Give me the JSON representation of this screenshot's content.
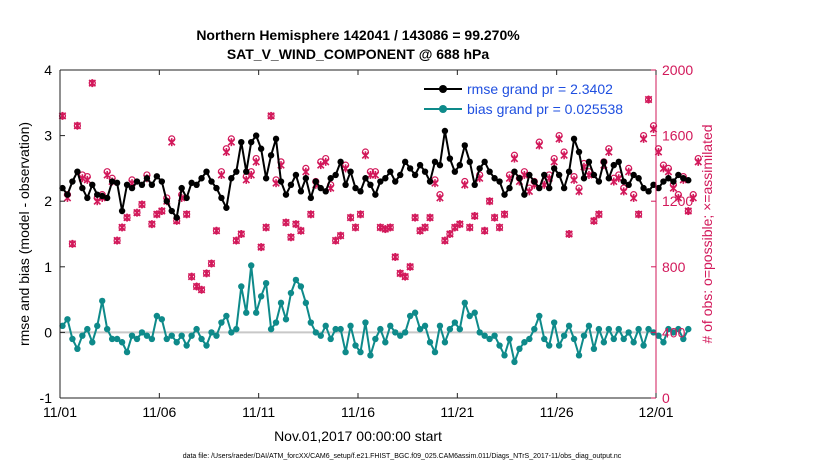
{
  "colors": {
    "rmse": "#000000",
    "bias": "#0e8a8a",
    "obs": "#d2185a",
    "legend_text": "#1f4fe0",
    "zero_line": "#c8c8c8"
  },
  "chart_data": {
    "type": "line",
    "title": "Northern Hemisphere 142041 / 143086 = 99.270%",
    "subtitle": "SAT_V_WIND_COMPONENT @ 688 hPa",
    "xlabel": "Nov.01,2017 00:00:00 start",
    "ylabel": "rmse and bias (model - observation)",
    "y2label": "# of obs: o=possible; ×=assimilated",
    "xlim": [
      0,
      30
    ],
    "ylim": [
      -1,
      4
    ],
    "y2lim": [
      0,
      2000
    ],
    "x_ticks": [
      0,
      5,
      10,
      15,
      20,
      25,
      30
    ],
    "x_tick_labels": [
      "11/01",
      "11/06",
      "11/11",
      "11/16",
      "11/21",
      "11/26",
      "12/01"
    ],
    "y_ticks": [
      -1,
      0,
      1,
      2,
      3,
      4
    ],
    "y_tick_labels": [
      "-1",
      "0",
      "1",
      "2",
      "3",
      "4"
    ],
    "y2_ticks": [
      0,
      400,
      800,
      1200,
      1600,
      2000
    ],
    "y2_tick_labels": [
      "0",
      "400",
      "800",
      "1200",
      "1600",
      "2000"
    ],
    "x_start": 0.125,
    "x_step": 0.25,
    "legend": [
      {
        "label": "rmse grand pr = 2.3402",
        "series": "rmse"
      },
      {
        "label": "bias grand pr = 0.025538",
        "series": "bias"
      }
    ],
    "series": [
      {
        "name": "rmse",
        "axis": "left",
        "values": [
          2.2,
          2.1,
          2.3,
          2.45,
          2.2,
          2.05,
          2.25,
          2.1,
          2.08,
          2.05,
          2.3,
          2.28,
          1.85,
          2.25,
          2.2,
          2.3,
          2.25,
          2.35,
          2.25,
          2.38,
          2.3,
          2.0,
          1.85,
          1.75,
          2.2,
          2.05,
          2.28,
          2.25,
          2.35,
          2.45,
          2.3,
          2.2,
          2.05,
          1.9,
          2.35,
          2.45,
          2.9,
          2.45,
          2.9,
          3.0,
          2.8,
          2.35,
          2.7,
          2.95,
          2.3,
          2.1,
          2.25,
          2.4,
          2.15,
          2.35,
          2.05,
          2.3,
          2.2,
          2.15,
          2.35,
          2.4,
          2.6,
          2.25,
          2.45,
          2.2,
          2.15,
          2.35,
          2.25,
          2.1,
          2.3,
          2.35,
          2.45,
          2.3,
          2.4,
          2.6,
          2.5,
          2.4,
          2.55,
          2.45,
          2.3,
          2.6,
          2.55,
          3.07,
          2.65,
          2.45,
          2.55,
          2.85,
          2.6,
          2.25,
          2.5,
          2.6,
          2.45,
          2.35,
          2.3,
          2.1,
          2.2,
          2.45,
          2.35,
          2.1,
          2.4,
          2.3,
          2.2,
          2.4,
          2.2,
          2.5,
          2.4,
          2.2,
          2.45,
          2.95,
          2.75,
          2.35,
          2.6,
          2.4,
          2.3,
          2.6,
          2.35,
          2.55,
          2.6,
          2.3,
          2.25,
          2.4,
          2.35,
          2.2,
          2.15,
          2.25,
          2.2,
          2.3,
          2.35,
          2.3,
          2.4,
          2.35,
          2.32
        ]
      },
      {
        "name": "bias",
        "axis": "left",
        "values": [
          0.1,
          0.2,
          -0.1,
          -0.25,
          -0.05,
          0.05,
          -0.15,
          0.1,
          0.48,
          0.05,
          -0.1,
          -0.1,
          -0.15,
          -0.3,
          -0.05,
          -0.1,
          0.0,
          -0.05,
          -0.1,
          0.25,
          0.2,
          -0.1,
          -0.05,
          -0.15,
          -0.05,
          -0.2,
          -0.05,
          0.05,
          -0.1,
          -0.2,
          0.0,
          -0.05,
          0.15,
          0.25,
          0.0,
          0.05,
          0.7,
          0.3,
          1.02,
          0.3,
          0.55,
          0.75,
          0.05,
          0.15,
          0.45,
          0.2,
          0.6,
          0.8,
          0.7,
          0.45,
          0.15,
          0.0,
          -0.05,
          0.1,
          -0.1,
          0.05,
          0.05,
          -0.3,
          0.1,
          -0.2,
          -0.3,
          0.15,
          -0.35,
          -0.1,
          0.05,
          -0.15,
          0.1,
          0.0,
          -0.05,
          0.0,
          0.25,
          0.3,
          0.05,
          0.1,
          -0.15,
          -0.3,
          0.1,
          -0.15,
          0.05,
          0.15,
          0.05,
          0.45,
          0.25,
          0.3,
          0.0,
          -0.05,
          -0.1,
          -0.05,
          -0.2,
          -0.35,
          -0.1,
          -0.45,
          -0.25,
          -0.15,
          -0.1,
          0.05,
          0.25,
          -0.1,
          -0.2,
          0.15,
          -0.2,
          -0.05,
          0.1,
          -0.1,
          -0.35,
          -0.05,
          0.1,
          -0.25,
          0.05,
          -0.15,
          0.05,
          -0.1,
          0.05,
          -0.1,
          0.0,
          -0.15,
          0.05,
          -0.2,
          0.05,
          0.0,
          -0.05,
          -0.15,
          0.05,
          0.0,
          0.05,
          -0.1,
          0.05
        ]
      },
      {
        "name": "obs_possible",
        "axis": "right",
        "values": [
          1720,
          1240,
          940,
          1660,
          1360,
          1350,
          1920,
          1220,
          1240,
          1380,
          1340,
          960,
          1040,
          1100,
          1330,
          1130,
          1180,
          1360,
          1060,
          1120,
          1140,
          1220,
          1580,
          1080,
          1240,
          1120,
          740,
          680,
          660,
          760,
          820,
          1020,
          1380,
          1520,
          1580,
          960,
          1000,
          1350,
          1380,
          1460,
          920,
          1040,
          1720,
          1330,
          1440,
          1070,
          980,
          1060,
          1020,
          1400,
          1120,
          1320,
          1440,
          1460,
          1300,
          960,
          990,
          1420,
          1100,
          1040,
          1120,
          1500,
          1380,
          1380,
          1040,
          1030,
          1040,
          860,
          760,
          740,
          800,
          1100,
          1020,
          1040,
          1100,
          1330,
          1240,
          960,
          1000,
          1040,
          1060,
          1320,
          1040,
          1110,
          1360,
          1020,
          1200,
          1100,
          1040,
          1120,
          1360,
          1480,
          1340,
          1380,
          1280,
          1320,
          1560,
          1320,
          1360,
          1460,
          1600,
          1500,
          1000,
          1350,
          1280,
          1430,
          1380,
          1080,
          1120,
          1440,
          1520,
          1340,
          1360,
          1280,
          1400,
          1240,
          1120,
          1600,
          1820,
          1660,
          1520,
          1420,
          1400,
          1300,
          1240,
          1350,
          1140,
          1240,
          1460
        ]
      },
      {
        "name": "obs_assimilated",
        "axis": "right",
        "values": [
          1720,
          1220,
          940,
          1660,
          1340,
          1330,
          1920,
          1200,
          1220,
          1360,
          1320,
          960,
          1040,
          1100,
          1310,
          1130,
          1180,
          1340,
          1060,
          1120,
          1140,
          1200,
          1560,
          1080,
          1220,
          1120,
          740,
          680,
          660,
          760,
          820,
          1020,
          1360,
          1500,
          1560,
          960,
          1000,
          1330,
          1360,
          1440,
          920,
          1040,
          1720,
          1310,
          1420,
          1070,
          980,
          1060,
          1020,
          1380,
          1120,
          1300,
          1420,
          1440,
          1280,
          960,
          990,
          1400,
          1100,
          1040,
          1120,
          1480,
          1360,
          1360,
          1040,
          1030,
          1040,
          860,
          760,
          740,
          800,
          1100,
          1020,
          1040,
          1100,
          1310,
          1220,
          960,
          1000,
          1040,
          1060,
          1300,
          1040,
          1110,
          1340,
          1020,
          1200,
          1100,
          1040,
          1120,
          1340,
          1460,
          1320,
          1360,
          1260,
          1300,
          1540,
          1300,
          1340,
          1440,
          1580,
          1480,
          1000,
          1330,
          1260,
          1410,
          1360,
          1080,
          1120,
          1420,
          1500,
          1320,
          1340,
          1260,
          1380,
          1220,
          1120,
          1580,
          1820,
          1640,
          1500,
          1400,
          1380,
          1280,
          1220,
          1330,
          1140,
          1220,
          1440
        ]
      }
    ],
    "footnote": "data file: /Users/raeder/DAI/ATM_forcXX/CAM6_setup/f.e21.FHIST_BGC.f09_025.CAM6assim.011/Diags_NTrS_2017-11/obs_diag_output.nc"
  }
}
